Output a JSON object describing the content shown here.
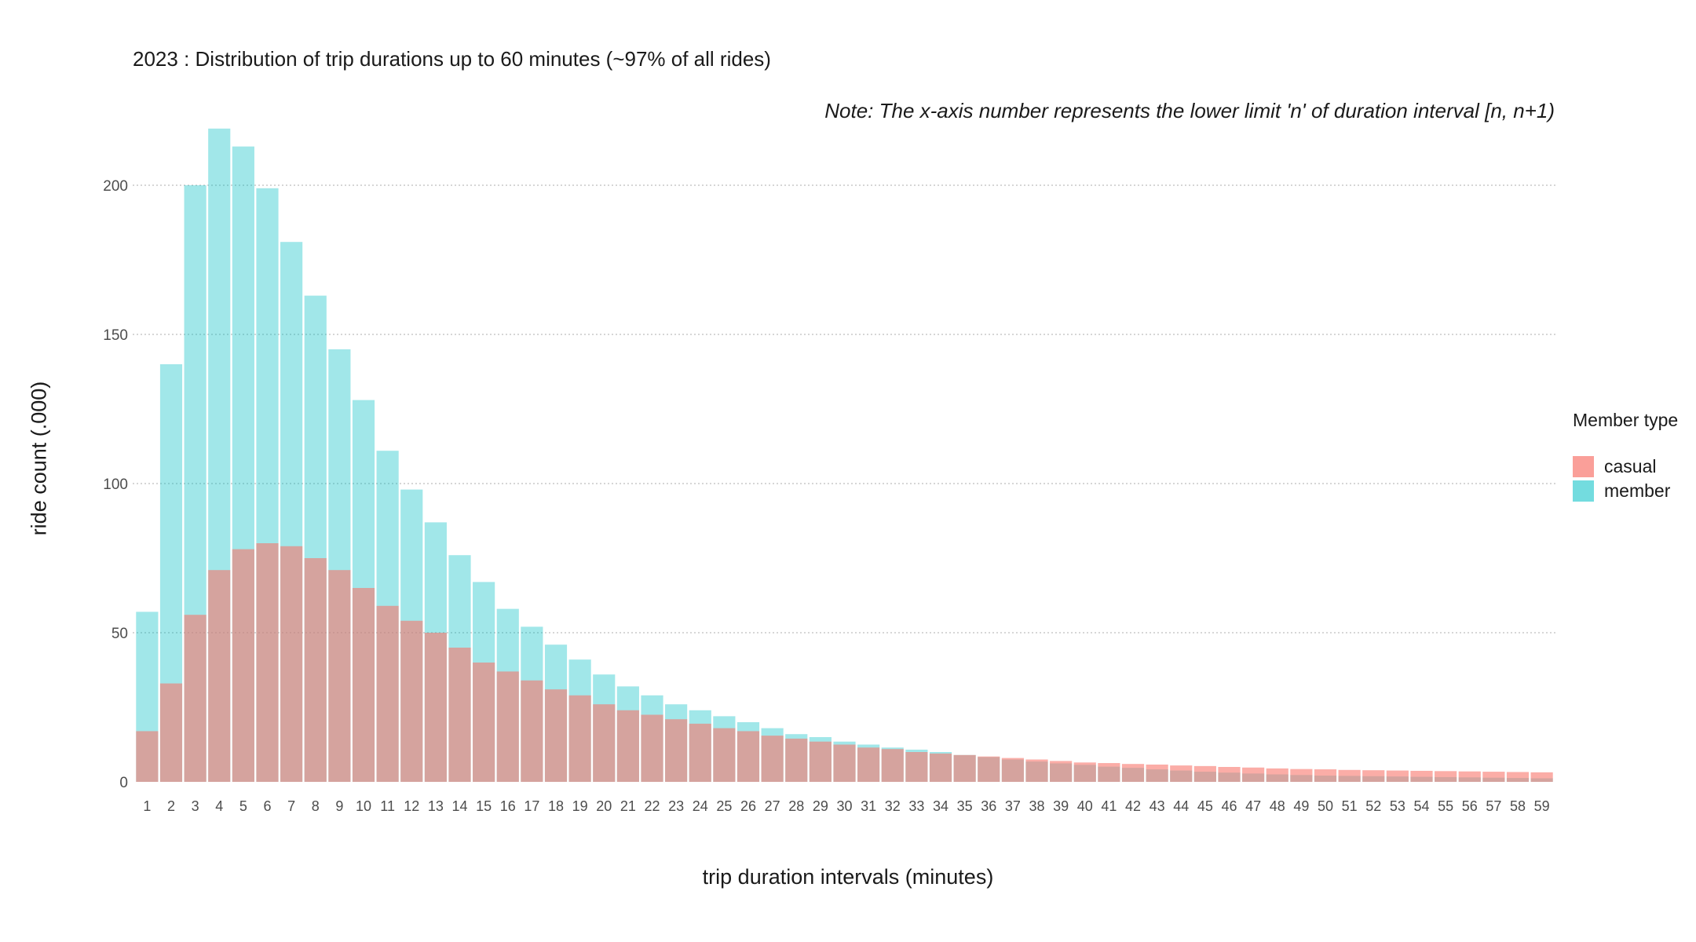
{
  "chart_data": {
    "type": "bar",
    "title": "2023 : Distribution of trip durations up to 60 minutes (~97% of all rides)",
    "subtitle": "Note: The x-axis number represents the lower limit 'n' of duration interval [n, n+1)",
    "xlabel": "trip duration intervals (minutes)",
    "ylabel": "ride count (.000)",
    "ylim": [
      0,
      220
    ],
    "yticks": [
      0,
      50,
      100,
      150,
      200
    ],
    "grid": "horizontal",
    "legend_placement": "right",
    "legend_title": "Member type",
    "overlay": true,
    "categories": [
      "1",
      "2",
      "3",
      "4",
      "5",
      "6",
      "7",
      "8",
      "9",
      "10",
      "11",
      "12",
      "13",
      "14",
      "15",
      "16",
      "17",
      "18",
      "19",
      "20",
      "21",
      "22",
      "23",
      "24",
      "25",
      "26",
      "27",
      "28",
      "29",
      "30",
      "31",
      "32",
      "33",
      "34",
      "35",
      "36",
      "37",
      "38",
      "39",
      "40",
      "41",
      "42",
      "43",
      "44",
      "45",
      "46",
      "47",
      "48",
      "49",
      "50",
      "51",
      "52",
      "53",
      "54",
      "55",
      "56",
      "57",
      "58",
      "59"
    ],
    "series": [
      {
        "name": "member",
        "color": "#00BFC4",
        "values": [
          57,
          140,
          200,
          219,
          213,
          199,
          181,
          163,
          145,
          128,
          111,
          98,
          87,
          76,
          67,
          58,
          52,
          46,
          41,
          36,
          32,
          29,
          26,
          24,
          22,
          20,
          18,
          16,
          15,
          13.5,
          12.5,
          11.5,
          10.8,
          10,
          9,
          8.3,
          7.5,
          6.8,
          6.2,
          5.7,
          5.1,
          4.7,
          4.2,
          3.8,
          3.4,
          3.1,
          2.8,
          2.5,
          2.3,
          2.1,
          2,
          1.9,
          1.8,
          1.7,
          1.6,
          1.5,
          1.4,
          1.3,
          1.2
        ]
      },
      {
        "name": "casual",
        "color": "#F8766D",
        "values": [
          17,
          33,
          56,
          71,
          78,
          80,
          79,
          75,
          71,
          65,
          59,
          54,
          50,
          45,
          40,
          37,
          34,
          31,
          29,
          26,
          24,
          22.5,
          21,
          19.5,
          18,
          17,
          15.5,
          14.5,
          13.5,
          12.5,
          11.5,
          11,
          10,
          9.5,
          9,
          8.5,
          8,
          7.5,
          7,
          6.5,
          6.3,
          6,
          5.8,
          5.5,
          5.3,
          5,
          4.8,
          4.5,
          4.3,
          4.2,
          4,
          3.9,
          3.8,
          3.7,
          3.6,
          3.5,
          3.4,
          3.3,
          3.2
        ]
      }
    ]
  }
}
